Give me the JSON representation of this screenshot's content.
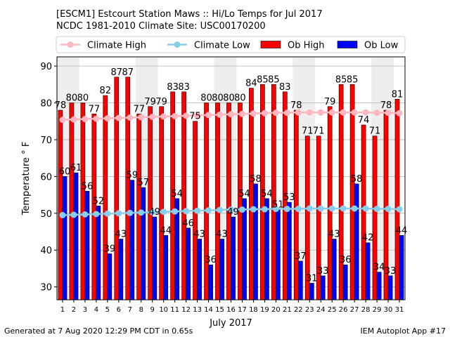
{
  "chart_data": {
    "type": "bar",
    "title_line1": "[ESCM1] Estcourt Station Maws :: Hi/Lo Temps for Jul 2017",
    "title_line2": "NCDC 1981-2010 Climate Site: USC00170200",
    "xlabel": "July 2017",
    "ylabel": "Temperature ° F",
    "ylim": [
      26.5,
      92.5
    ],
    "yticks": [
      30,
      40,
      50,
      60,
      70,
      80,
      90
    ],
    "grid": true,
    "legend_position": "top",
    "shaded_weekends": true,
    "categories": [
      "1",
      "2",
      "3",
      "4",
      "5",
      "6",
      "7",
      "8",
      "9",
      "10",
      "11",
      "12",
      "13",
      "14",
      "15",
      "16",
      "17",
      "18",
      "19",
      "20",
      "21",
      "22",
      "23",
      "24",
      "25",
      "26",
      "27",
      "28",
      "29",
      "30",
      "31"
    ],
    "series": [
      {
        "name": "Climate High",
        "type": "line",
        "color": "#ffb6c1",
        "values": [
          75.4,
          75.5,
          75.6,
          75.7,
          75.8,
          75.9,
          76.0,
          76.1,
          76.2,
          76.3,
          76.4,
          76.5,
          76.6,
          76.7,
          76.8,
          76.9,
          77.0,
          77.1,
          77.2,
          77.3,
          77.3,
          77.4,
          77.4,
          77.4,
          77.4,
          77.4,
          77.4,
          77.4,
          77.3,
          77.3,
          77.2
        ]
      },
      {
        "name": "Climate Low",
        "type": "line",
        "color": "#87ceeb",
        "values": [
          49.5,
          49.6,
          49.7,
          49.8,
          49.9,
          50.0,
          50.1,
          50.2,
          50.3,
          50.4,
          50.5,
          50.6,
          50.7,
          50.8,
          50.9,
          51.0,
          51.0,
          51.1,
          51.1,
          51.2,
          51.2,
          51.2,
          51.3,
          51.3,
          51.3,
          51.3,
          51.3,
          51.3,
          51.2,
          51.2,
          51.1
        ]
      },
      {
        "name": "Ob High",
        "type": "bar",
        "color": "#ff0000",
        "values": [
          78,
          80,
          80,
          77,
          82,
          87,
          87,
          77,
          79,
          79,
          83,
          83,
          75,
          80,
          80,
          80,
          80,
          84,
          85,
          85,
          83,
          78,
          71,
          71,
          79,
          85,
          85,
          74,
          71,
          78,
          81
        ]
      },
      {
        "name": "Ob Low",
        "type": "bar",
        "color": "#0000ff",
        "values": [
          60,
          61,
          56,
          52,
          39,
          43,
          59,
          57,
          49,
          44,
          54,
          46,
          43,
          36,
          43,
          49,
          54,
          58,
          54,
          51,
          53,
          37,
          31,
          33,
          43,
          36,
          58,
          42,
          34,
          33,
          44
        ]
      }
    ]
  },
  "footer": {
    "left": "Generated at 7 Aug 2020 12:29 PM CDT in 0.65s",
    "right": "IEM Autoplot App #17"
  }
}
